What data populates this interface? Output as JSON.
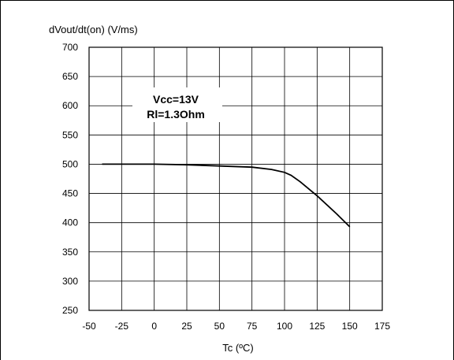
{
  "chart_data": {
    "type": "line",
    "title": "",
    "ylabel": "dVout/dt(on) (V/ms)",
    "xlabel": "Tc (ºC)",
    "xlim": [
      -50,
      175
    ],
    "ylim": [
      250,
      700
    ],
    "xticks": [
      -50,
      -25,
      0,
      25,
      50,
      75,
      100,
      125,
      150,
      175
    ],
    "yticks": [
      250,
      300,
      350,
      400,
      450,
      500,
      550,
      600,
      650,
      700
    ],
    "grid": true,
    "annotations": [
      "Vcc=13V",
      "Rl=1.3Ohm"
    ],
    "series": [
      {
        "x": [
          -40,
          -25,
          0,
          25,
          50,
          75,
          90,
          100,
          105,
          112,
          125,
          140,
          150
        ],
        "y": [
          500,
          500,
          500,
          499,
          497,
          495,
          491,
          486,
          481,
          470,
          446,
          415,
          393
        ]
      }
    ]
  }
}
